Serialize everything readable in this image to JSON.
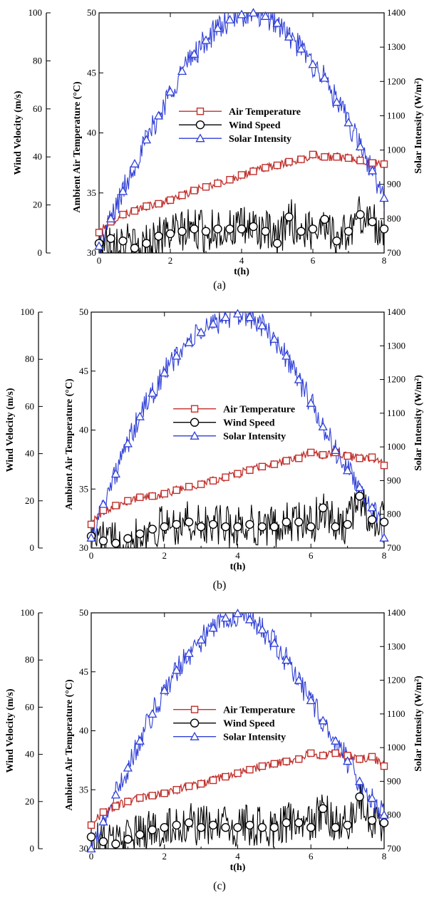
{
  "panels": [
    "(a)",
    "(b)",
    "(c)"
  ],
  "chart_data": [
    {
      "type": "line",
      "caption": "(a)",
      "xlabel": "t(h)",
      "ylabel_wind": "Wind Velocity (m/s)",
      "ylabel_temp": "Ambient Air Temperature (°C)",
      "ylabel_solar": "Solar Intensity (W/m²)",
      "xlim": [
        0,
        8
      ],
      "xticks": [
        "0",
        "2",
        "4",
        "6",
        "8"
      ],
      "wind_lim": [
        0,
        100
      ],
      "wind_ticks": [
        "0",
        "20",
        "40",
        "60",
        "80",
        "100"
      ],
      "temp_lim": [
        30,
        50
      ],
      "temp_ticks": [
        "30",
        "35",
        "40",
        "45",
        "50"
      ],
      "solar_lim": [
        700,
        1400
      ],
      "solar_ticks": [
        "700",
        "800",
        "900",
        "1000",
        "1100",
        "1200",
        "1300",
        "1400"
      ],
      "legend": {
        "placement": "center",
        "entries": [
          "Air Temperature",
          "Wind Speed",
          "Solar Intensity"
        ]
      },
      "series": [
        {
          "name": "Air Temperature",
          "axis": "temp",
          "color": "#c0302c",
          "marker": "square",
          "x": [
            0,
            0.33,
            0.67,
            1,
            1.33,
            1.67,
            2,
            2.33,
            2.67,
            3,
            3.33,
            3.67,
            4,
            4.33,
            4.67,
            5,
            5.33,
            5.67,
            6,
            6.33,
            6.67,
            7,
            7.33,
            7.67,
            8
          ],
          "y": [
            31.7,
            32.6,
            33.2,
            33.5,
            33.9,
            34.1,
            34.4,
            34.8,
            35.2,
            35.5,
            35.8,
            36.1,
            36.5,
            36.8,
            37.1,
            37.3,
            37.6,
            37.8,
            38.2,
            38.0,
            38.0,
            37.9,
            37.7,
            37.5,
            37.4
          ]
        },
        {
          "name": "Wind Speed",
          "axis": "wind",
          "color": "#000000",
          "marker": "circle",
          "x": [
            0,
            0.33,
            0.67,
            1,
            1.33,
            1.67,
            2,
            2.33,
            2.67,
            3,
            3.33,
            3.67,
            4,
            4.33,
            4.67,
            5,
            5.33,
            5.67,
            6,
            6.33,
            6.67,
            7,
            7.33,
            7.67,
            8
          ],
          "y": [
            4,
            6,
            5,
            2,
            4,
            7,
            8,
            9,
            10,
            9,
            10,
            10,
            10,
            11,
            9,
            4,
            15,
            9,
            10,
            14,
            5,
            9,
            16,
            13,
            10
          ]
        },
        {
          "name": "Solar Intensity",
          "axis": "solar",
          "color": "#2f3fd6",
          "marker": "triangle",
          "x": [
            0,
            0.33,
            0.67,
            1,
            1.33,
            1.67,
            2,
            2.33,
            2.67,
            3,
            3.33,
            3.67,
            4,
            4.33,
            4.67,
            5,
            5.33,
            5.67,
            6,
            6.33,
            6.67,
            7,
            7.33,
            7.67,
            8
          ],
          "y": [
            720,
            800,
            880,
            960,
            1030,
            1100,
            1170,
            1230,
            1280,
            1320,
            1355,
            1380,
            1395,
            1400,
            1390,
            1370,
            1330,
            1295,
            1250,
            1210,
            1140,
            1080,
            1010,
            940,
            860
          ]
        }
      ]
    },
    {
      "type": "line",
      "caption": "(b)",
      "xlabel": "t(h)",
      "ylabel_wind": "Wind Velocity (m/s)",
      "ylabel_temp": "Ambient Air Temperature (°C)",
      "ylabel_solar": "Solar Intensity (W/m²)",
      "xlim": [
        0,
        8
      ],
      "xticks": [
        "0",
        "2",
        "4",
        "6",
        "8"
      ],
      "wind_lim": [
        0,
        100
      ],
      "wind_ticks": [
        "0",
        "20",
        "40",
        "60",
        "80",
        "100"
      ],
      "temp_lim": [
        30,
        50
      ],
      "temp_ticks": [
        "30",
        "35",
        "40",
        "45",
        "50"
      ],
      "solar_lim": [
        700,
        1400
      ],
      "solar_ticks": [
        "700",
        "800",
        "900",
        "1000",
        "1100",
        "1200",
        "1300",
        "1400"
      ],
      "legend": {
        "placement": "center",
        "entries": [
          "Air Temperature",
          "Wind Speed",
          "Solar Intensity"
        ]
      },
      "series": [
        {
          "name": "Air Temperature",
          "axis": "temp",
          "color": "#c0302c",
          "marker": "square",
          "x": [
            0,
            0.33,
            0.67,
            1,
            1.33,
            1.67,
            2,
            2.33,
            2.67,
            3,
            3.33,
            3.67,
            4,
            4.33,
            4.67,
            5,
            5.33,
            5.67,
            6,
            6.33,
            6.67,
            7,
            7.33,
            7.67,
            8
          ],
          "y": [
            32.0,
            33.2,
            33.6,
            34.0,
            34.3,
            34.4,
            34.6,
            34.9,
            35.2,
            35.4,
            35.7,
            36.0,
            36.3,
            36.6,
            36.9,
            37.1,
            37.4,
            37.6,
            38.1,
            37.9,
            38.1,
            37.8,
            37.6,
            37.7,
            37.0
          ]
        },
        {
          "name": "Wind Speed",
          "axis": "wind",
          "color": "#000000",
          "marker": "circle",
          "x": [
            0,
            0.33,
            0.67,
            1,
            1.33,
            1.67,
            2,
            2.33,
            2.67,
            3,
            3.33,
            3.67,
            4,
            4.33,
            4.67,
            5,
            5.33,
            5.67,
            6,
            6.33,
            6.67,
            7,
            7.33,
            7.67,
            8
          ],
          "y": [
            5,
            3,
            2,
            4,
            6,
            8,
            9,
            10,
            11,
            9,
            10,
            9,
            9,
            10,
            9,
            9,
            11,
            11,
            9,
            17,
            9,
            10,
            22,
            12,
            11
          ]
        },
        {
          "name": "Solar Intensity",
          "axis": "solar",
          "color": "#2f3fd6",
          "marker": "triangle",
          "x": [
            0,
            0.33,
            0.67,
            1,
            1.33,
            1.67,
            2,
            2.33,
            2.67,
            3,
            3.33,
            3.67,
            4,
            4.33,
            4.67,
            5,
            5.33,
            5.67,
            6,
            6.33,
            6.67,
            7,
            7.33,
            7.67,
            8
          ],
          "y": [
            730,
            830,
            920,
            1010,
            1090,
            1160,
            1220,
            1270,
            1310,
            1340,
            1365,
            1385,
            1395,
            1385,
            1360,
            1320,
            1270,
            1200,
            1130,
            1060,
            990,
            930,
            880,
            820,
            730
          ]
        }
      ]
    },
    {
      "type": "line",
      "caption": "(c)",
      "xlabel": "t(h)",
      "ylabel_wind": "Wind Velocity (m/s)",
      "ylabel_temp": "Ambient Air Temperature (°C)",
      "ylabel_solar": "Solar Intensity (W/m²)",
      "xlim": [
        0,
        8
      ],
      "xticks": [
        "0",
        "2",
        "4",
        "6",
        "8"
      ],
      "wind_lim": [
        0,
        100
      ],
      "wind_ticks": [
        "0",
        "20",
        "40",
        "60",
        "80",
        "100"
      ],
      "temp_lim": [
        30,
        50
      ],
      "temp_ticks": [
        "30",
        "35",
        "40",
        "45",
        "50"
      ],
      "solar_lim": [
        700,
        1400
      ],
      "solar_ticks": [
        "700",
        "800",
        "900",
        "1000",
        "1100",
        "1200",
        "1300",
        "1400"
      ],
      "legend": {
        "placement": "center",
        "entries": [
          "Air Temperature",
          "Wind Speed",
          "Solar Intensity"
        ]
      },
      "series": [
        {
          "name": "Air Temperature",
          "axis": "temp",
          "color": "#c0302c",
          "marker": "square",
          "x": [
            0,
            0.33,
            0.67,
            1,
            1.33,
            1.67,
            2,
            2.33,
            2.67,
            3,
            3.33,
            3.67,
            4,
            4.33,
            4.67,
            5,
            5.33,
            5.67,
            6,
            6.33,
            6.67,
            7,
            7.33,
            7.67,
            8
          ],
          "y": [
            32.0,
            33.1,
            33.6,
            34.0,
            34.3,
            34.5,
            34.7,
            35.0,
            35.3,
            35.5,
            35.8,
            36.1,
            36.4,
            36.7,
            37.0,
            37.2,
            37.4,
            37.6,
            38.1,
            37.9,
            38.1,
            37.9,
            37.6,
            37.8,
            37.0
          ]
        },
        {
          "name": "Wind Speed",
          "axis": "wind",
          "color": "#000000",
          "marker": "circle",
          "x": [
            0,
            0.33,
            0.67,
            1,
            1.33,
            1.67,
            2,
            2.33,
            2.67,
            3,
            3.33,
            3.67,
            4,
            4.33,
            4.67,
            5,
            5.33,
            5.67,
            6,
            6.33,
            6.67,
            7,
            7.33,
            7.67,
            8
          ],
          "y": [
            5,
            3,
            2,
            4,
            6,
            8,
            9,
            10,
            11,
            9,
            10,
            9,
            9,
            10,
            9,
            9,
            11,
            11,
            9,
            17,
            9,
            10,
            22,
            12,
            11
          ]
        },
        {
          "name": "Solar Intensity",
          "axis": "solar",
          "color": "#2f3fd6",
          "marker": "triangle",
          "x": [
            0,
            0.33,
            0.67,
            1,
            1.33,
            1.67,
            2,
            2.33,
            2.67,
            3,
            3.33,
            3.67,
            4,
            4.33,
            4.67,
            5,
            5.33,
            5.67,
            6,
            6.33,
            6.67,
            7,
            7.33,
            7.67,
            8
          ],
          "y": [
            700,
            780,
            860,
            940,
            1020,
            1100,
            1170,
            1230,
            1280,
            1320,
            1355,
            1385,
            1398,
            1380,
            1350,
            1310,
            1260,
            1200,
            1140,
            1080,
            1020,
            960,
            900,
            850,
            800
          ]
        }
      ]
    }
  ]
}
